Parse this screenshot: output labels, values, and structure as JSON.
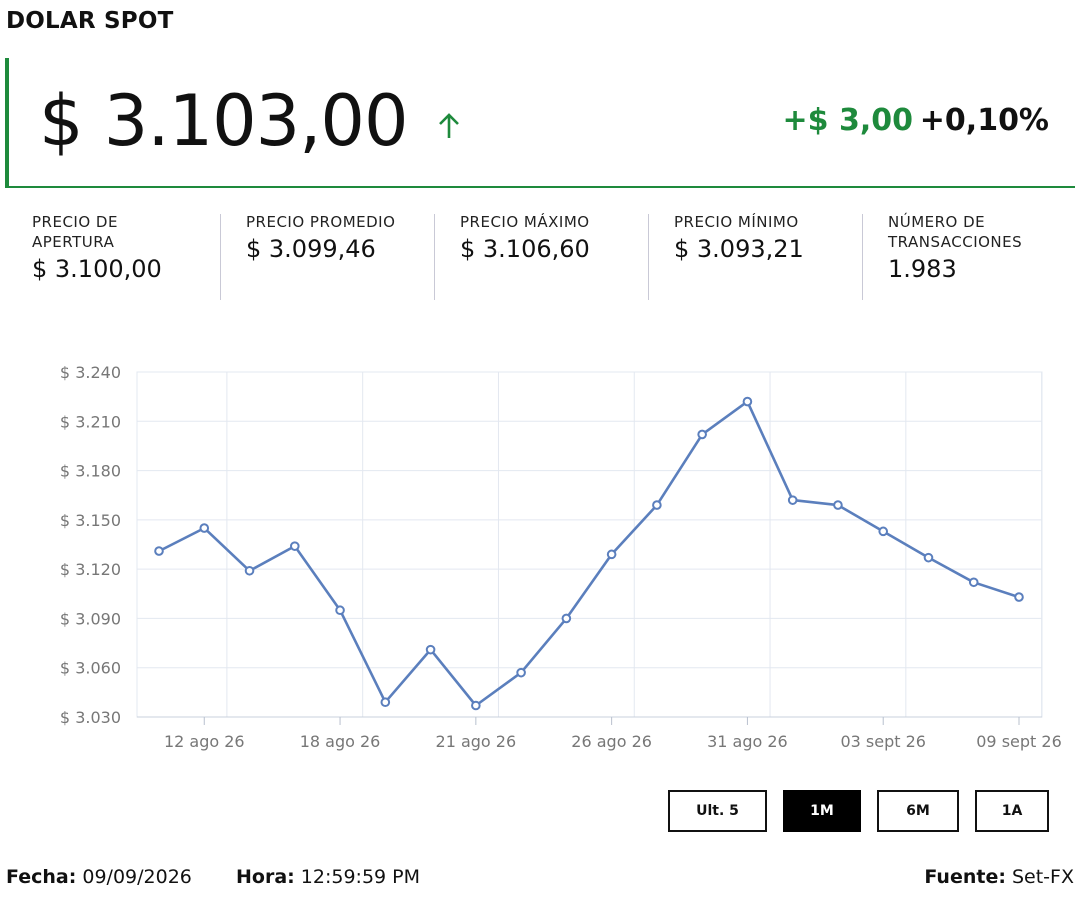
{
  "header": {
    "title": "DOLAR SPOT"
  },
  "price": {
    "value": "$ 3.103,00",
    "change_abs": "+$ 3,00",
    "change_pct": "+0,10%",
    "up_color": "#1e8a3c"
  },
  "stats": [
    {
      "label": "PRECIO DE APERTURA",
      "value": "$ 3.100,00"
    },
    {
      "label": "PRECIO PROMEDIO",
      "value": "$ 3.099,46"
    },
    {
      "label": "PRECIO MÁXIMO",
      "value": "$ 3.106,60"
    },
    {
      "label": "PRECIO MÍNIMO",
      "value": "$ 3.093,21"
    },
    {
      "label": "NÚMERO DE TRANSACCIONES",
      "value": "1.983"
    }
  ],
  "chart_data": {
    "type": "line",
    "y_ticks": [
      3030,
      3060,
      3090,
      3120,
      3150,
      3180,
      3210,
      3240
    ],
    "y_tick_labels": [
      "$ 3.030",
      "$ 3.060",
      "$ 3.090",
      "$ 3.120",
      "$ 3.150",
      "$ 3.180",
      "$ 3.210",
      "$ 3.240"
    ],
    "ylim": [
      3030,
      3240
    ],
    "x_tick_labels": [
      "12 ago 26",
      "18 ago 26",
      "21 ago 26",
      "26 ago 26",
      "31 ago 26",
      "03 sept 26",
      "09 sept 26"
    ],
    "x_tick_indices": [
      1,
      4,
      7,
      10,
      13,
      16,
      19
    ],
    "values": [
      3131,
      3145,
      3119,
      3134,
      3095,
      3039,
      3071,
      3037,
      3057,
      3090,
      3129,
      3159,
      3202,
      3222,
      3162,
      3159,
      3143,
      3127,
      3112,
      3103
    ],
    "line_color": "#5b7fbd",
    "grid": true
  },
  "range_buttons": [
    {
      "label": "Ult. 5",
      "active": false
    },
    {
      "label": "1M",
      "active": true
    },
    {
      "label": "6M",
      "active": false
    },
    {
      "label": "1A",
      "active": false
    }
  ],
  "footer": {
    "fecha_label": "Fecha:",
    "fecha_value": "09/09/2026",
    "hora_label": "Hora:",
    "hora_value": "12:59:59 PM",
    "fuente_label": "Fuente:",
    "fuente_value": "Set-FX"
  }
}
